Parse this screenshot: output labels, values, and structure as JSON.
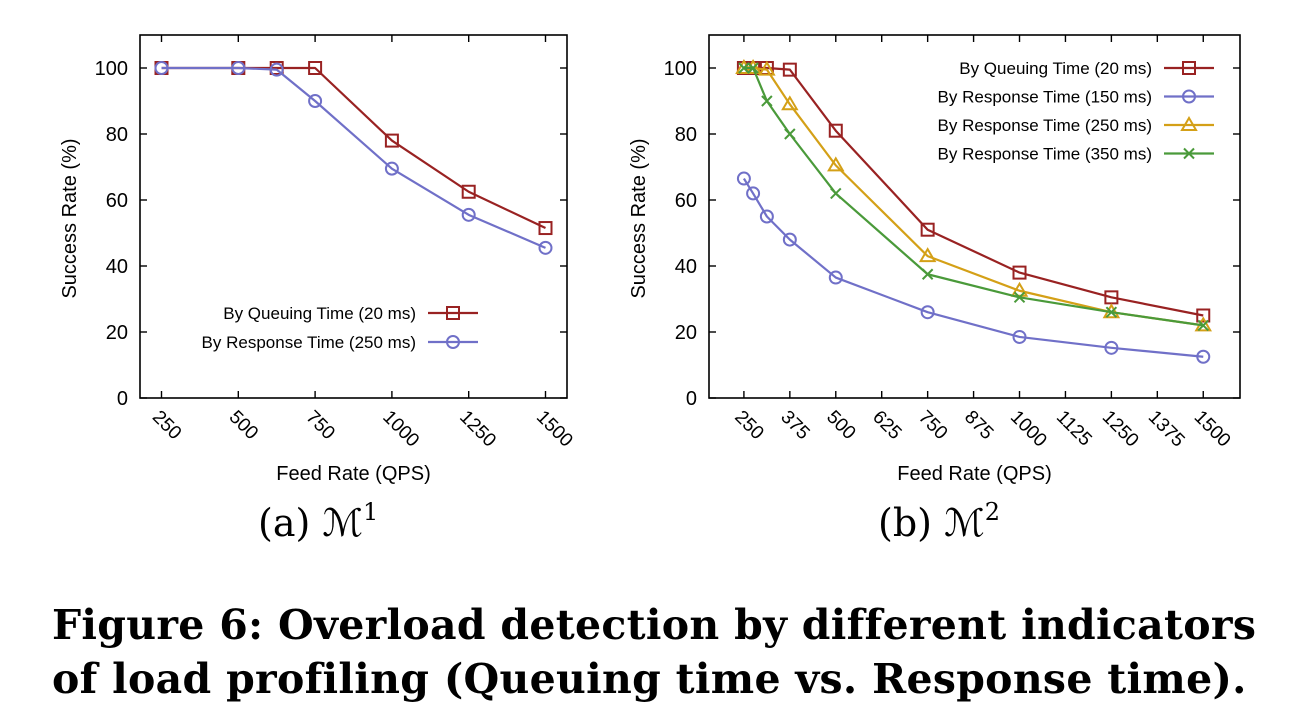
{
  "colors": {
    "queuing": "#992222",
    "resp150": "#7070c8",
    "resp250_a": "#7070c8",
    "resp250_b": "#d4a017",
    "resp350": "#4a9a3a"
  },
  "chart_data": [
    {
      "type": "line",
      "subcaption_prefix": "(a) ",
      "subcaption_symbol": "ℳ",
      "subcaption_sup": "1",
      "xlabel": "Feed Rate (QPS)",
      "ylabel": "Success Rate (%)",
      "xlim": [
        180,
        1570
      ],
      "ylim": [
        0,
        110
      ],
      "xticks": [
        250,
        500,
        750,
        1000,
        1250,
        1500
      ],
      "xtick_labels": [
        "250",
        "500",
        "750",
        "1000",
        "1250",
        "1500"
      ],
      "yticks": [
        0,
        20,
        40,
        60,
        80,
        100
      ],
      "ytick_labels": [
        "0",
        "20",
        "40",
        "60",
        "80",
        "100"
      ],
      "legend_position": "bottom-right",
      "series": [
        {
          "name": "By Queuing Time (20 ms)",
          "marker": "square",
          "color": "#992222",
          "x": [
            250,
            500,
            625,
            750,
            1000,
            1250,
            1500
          ],
          "y": [
            100,
            100,
            100,
            100,
            78,
            62.5,
            51.5
          ]
        },
        {
          "name": "By Response Time (250 ms)",
          "marker": "circle",
          "color": "#7070c8",
          "x": [
            250,
            500,
            625,
            750,
            1000,
            1250,
            1500
          ],
          "y": [
            100,
            100,
            99.5,
            90,
            69.5,
            55.5,
            45.5
          ]
        }
      ]
    },
    {
      "type": "line",
      "subcaption_prefix": "(b) ",
      "subcaption_symbol": "ℳ",
      "subcaption_sup": "2",
      "xlabel": "Feed Rate (QPS)",
      "ylabel": "Success Rate (%)",
      "xlim": [
        155,
        1600
      ],
      "ylim": [
        0,
        110
      ],
      "xticks": [
        250,
        375,
        500,
        625,
        750,
        875,
        1000,
        1125,
        1250,
        1375,
        1500
      ],
      "xtick_labels": [
        "250",
        "375",
        "500",
        "625",
        "750",
        "875",
        "1000",
        "1125",
        "1250",
        "1375",
        "1500"
      ],
      "yticks": [
        0,
        20,
        40,
        60,
        80,
        100
      ],
      "ytick_labels": [
        "0",
        "20",
        "40",
        "60",
        "80",
        "100"
      ],
      "legend_position": "top-right",
      "series": [
        {
          "name": "By Queuing Time (20 ms)",
          "marker": "square",
          "color": "#992222",
          "x": [
            250,
            275,
            312.5,
            375,
            500,
            750,
            1000,
            1250,
            1500
          ],
          "y": [
            100,
            100,
            100,
            99.5,
            81,
            51,
            38,
            30.5,
            25
          ]
        },
        {
          "name": "By Response Time (150 ms)",
          "marker": "circle",
          "color": "#7070c8",
          "x": [
            250,
            275,
            312.5,
            375,
            500,
            750,
            1000,
            1250,
            1500
          ],
          "y": [
            66.5,
            62,
            55,
            48,
            36.5,
            26,
            18.5,
            15.2,
            12.5
          ]
        },
        {
          "name": "By Response Time (250 ms)",
          "marker": "triangle",
          "color": "#d4a017",
          "x": [
            250,
            275,
            312.5,
            375,
            500,
            750,
            1000,
            1250,
            1500
          ],
          "y": [
            100,
            100,
            99.5,
            89,
            70.5,
            43,
            32.5,
            26,
            22
          ]
        },
        {
          "name": "By Response Time (350 ms)",
          "marker": "x",
          "color": "#4a9a3a",
          "x": [
            250,
            275,
            312.5,
            375,
            500,
            750,
            1000,
            1250,
            1500
          ],
          "y": [
            100,
            100,
            90,
            80,
            62,
            37.5,
            30.5,
            26,
            22
          ]
        }
      ]
    }
  ],
  "figure_caption": "Figure 6: Overload detection by different indicators of load profiling (Queuing time vs. Response time)."
}
